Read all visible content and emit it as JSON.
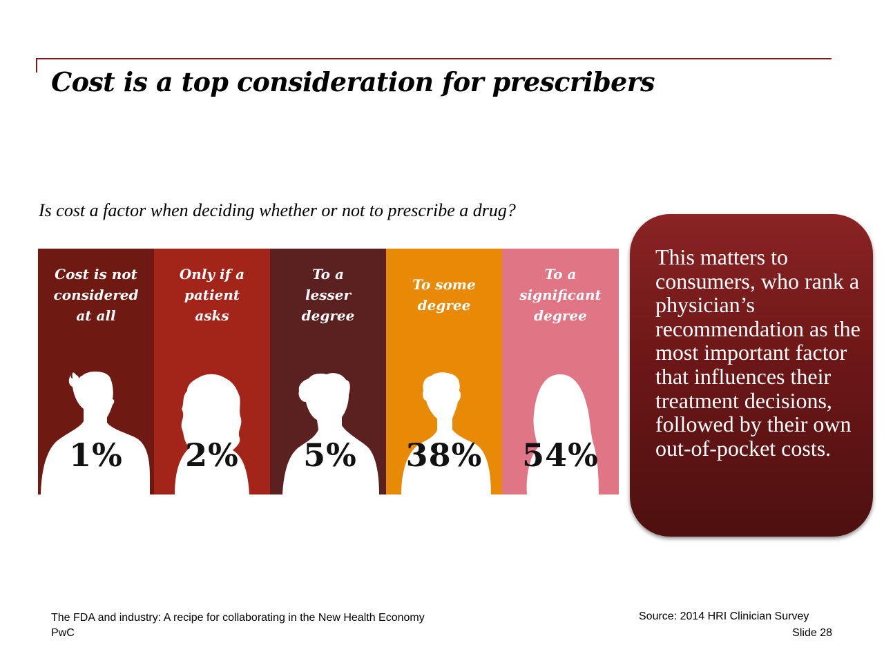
{
  "slide": {
    "title": "Cost is a top consideration for prescribers",
    "question": "Is cost a factor when deciding whether or not to prescribe a drug?"
  },
  "panels": [
    {
      "label_lines": [
        "Cost is not",
        "considered",
        "at all"
      ],
      "percent": "1%",
      "color": "#6e1a13",
      "figure": "man-short-hair"
    },
    {
      "label_lines": [
        "Only if a",
        "patient",
        "asks"
      ],
      "percent": "2%",
      "color": "#a3251a",
      "figure": "woman-curly-hair"
    },
    {
      "label_lines": [
        "To a",
        "lesser",
        "degree"
      ],
      "percent": "5%",
      "color": "#5b2020",
      "figure": "person-wavy-hair"
    },
    {
      "label_lines": [
        "To some",
        "degree"
      ],
      "percent": "38%",
      "color": "#e88a05",
      "figure": "man-young"
    },
    {
      "label_lines": [
        "To a",
        "significant",
        "degree"
      ],
      "percent": "54%",
      "color": "#e07585",
      "figure": "woman-long-hair"
    }
  ],
  "callout": {
    "text": "This matters to consumers, who rank a physician’s recommendation as the most important factor that influences their treatment decisions, followed by their own out-of-pocket costs."
  },
  "footer": {
    "report_title": "The FDA and industry: A recipe for collaborating in the New Health Economy",
    "company": "PwC",
    "source": "Source: 2014 HRI Clinician Survey",
    "slide_number": "Slide 28"
  },
  "colors": {
    "accent_line": "#7a1c1c",
    "callout_fill": "#6d1717"
  }
}
